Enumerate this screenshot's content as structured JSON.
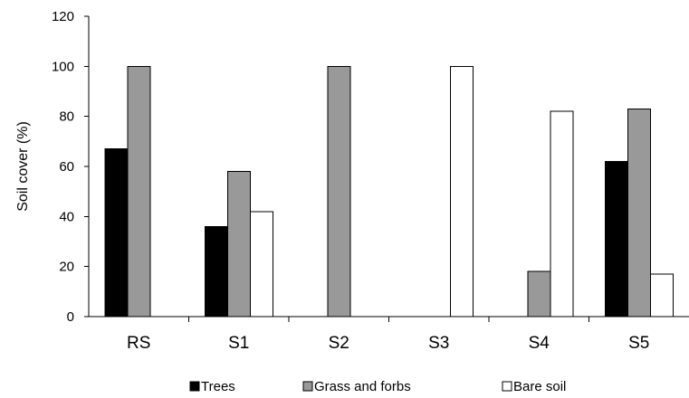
{
  "chart_data": {
    "type": "bar",
    "title": "",
    "xlabel": "",
    "ylabel": "Soil cover (%)",
    "ylim": [
      0,
      120
    ],
    "yticks": [
      0,
      20,
      40,
      60,
      80,
      100,
      120
    ],
    "grid": false,
    "legend_position": "bottom",
    "categories": [
      "RS",
      "S1",
      "S2",
      "S3",
      "S4",
      "S5"
    ],
    "series": [
      {
        "name": "Trees",
        "color": "#000000",
        "values": [
          67,
          36,
          0,
          0,
          0,
          62
        ]
      },
      {
        "name": "Grass and forbs",
        "color": "#999999",
        "values": [
          100,
          58,
          100,
          0,
          18,
          83
        ]
      },
      {
        "name": "Bare soil",
        "color": "#ffffff",
        "values": [
          0,
          42,
          0,
          100,
          82,
          17
        ]
      }
    ]
  }
}
